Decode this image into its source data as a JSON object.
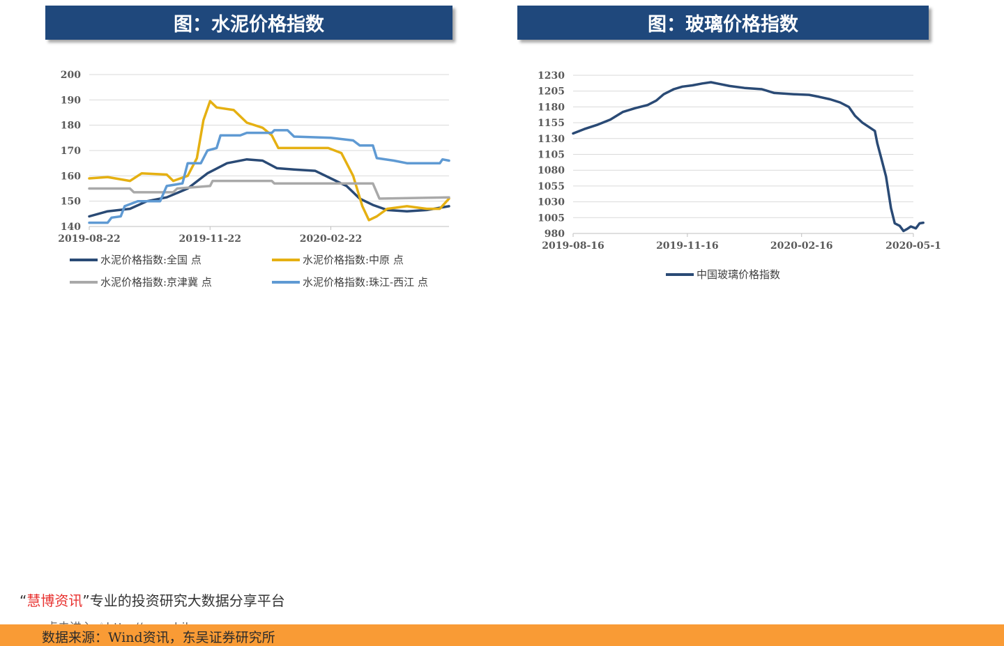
{
  "charts": {
    "left": {
      "banner": "图：水泥价格指数"
    },
    "right": {
      "banner": "图：玻璃价格指数"
    }
  },
  "chart_data": [
    {
      "type": "line",
      "title": "图：水泥价格指数",
      "x_ticks": [
        "2019-08-22",
        "2019-11-22",
        "2020-02-22"
      ],
      "x_range": [
        "2019-08-22",
        "2020-05-22"
      ],
      "y_ticks": [
        140,
        150,
        160,
        170,
        180,
        190,
        200
      ],
      "ylim": [
        140,
        200
      ],
      "grid": true,
      "legend_position": "bottom",
      "series": [
        {
          "name": "水泥价格指数:全国  点",
          "color": "#2a4a75",
          "points": [
            [
              "2019-08-22",
              144
            ],
            [
              "2019-09-05",
              146
            ],
            [
              "2019-09-22",
              147
            ],
            [
              "2019-10-05",
              150
            ],
            [
              "2019-10-20",
              151.5
            ],
            [
              "2019-11-05",
              155
            ],
            [
              "2019-11-20",
              161
            ],
            [
              "2019-12-05",
              165
            ],
            [
              "2019-12-20",
              166.5
            ],
            [
              "2020-01-01",
              166
            ],
            [
              "2020-01-12",
              163
            ],
            [
              "2020-01-25",
              162.5
            ],
            [
              "2020-02-10",
              162
            ],
            [
              "2020-02-22",
              159
            ],
            [
              "2020-03-05",
              156
            ],
            [
              "2020-03-15",
              151
            ],
            [
              "2020-03-25",
              148.5
            ],
            [
              "2020-04-05",
              146.5
            ],
            [
              "2020-04-20",
              146
            ],
            [
              "2020-05-05",
              146.5
            ],
            [
              "2020-05-22",
              148
            ]
          ]
        },
        {
          "name": "水泥价格指数:中原  点",
          "color": "#e5b012",
          "points": [
            [
              "2019-08-22",
              159
            ],
            [
              "2019-09-05",
              159.5
            ],
            [
              "2019-09-22",
              158
            ],
            [
              "2019-10-01",
              161
            ],
            [
              "2019-10-20",
              160.5
            ],
            [
              "2019-10-25",
              158
            ],
            [
              "2019-11-05",
              160
            ],
            [
              "2019-11-12",
              167
            ],
            [
              "2019-11-17",
              182
            ],
            [
              "2019-11-22",
              189.5
            ],
            [
              "2019-11-27",
              187
            ],
            [
              "2019-12-10",
              186
            ],
            [
              "2019-12-20",
              181
            ],
            [
              "2020-01-01",
              179
            ],
            [
              "2020-01-08",
              176
            ],
            [
              "2020-01-13",
              171
            ],
            [
              "2020-02-20",
              171
            ],
            [
              "2020-03-01",
              169
            ],
            [
              "2020-03-10",
              160
            ],
            [
              "2020-03-17",
              148
            ],
            [
              "2020-03-22",
              142.5
            ],
            [
              "2020-03-28",
              144
            ],
            [
              "2020-04-05",
              147
            ],
            [
              "2020-04-20",
              148
            ],
            [
              "2020-05-05",
              147
            ],
            [
              "2020-05-15",
              147
            ],
            [
              "2020-05-22",
              151
            ]
          ]
        },
        {
          "name": "水泥价格指数:京津冀  点",
          "color": "#a9a9a9",
          "points": [
            [
              "2019-08-22",
              155
            ],
            [
              "2019-09-22",
              155
            ],
            [
              "2019-09-25",
              153.5
            ],
            [
              "2019-10-25",
              153.5
            ],
            [
              "2019-10-28",
              155
            ],
            [
              "2019-11-22",
              156
            ],
            [
              "2019-11-24",
              158
            ],
            [
              "2020-01-08",
              158
            ],
            [
              "2020-01-10",
              157
            ],
            [
              "2020-03-25",
              157
            ],
            [
              "2020-03-30",
              151
            ],
            [
              "2020-05-22",
              151.5
            ]
          ]
        },
        {
          "name": "水泥价格指数:珠江-西江  点",
          "color": "#5f9ad3",
          "points": [
            [
              "2019-08-22",
              141.5
            ],
            [
              "2019-09-05",
              141.5
            ],
            [
              "2019-09-08",
              143.5
            ],
            [
              "2019-09-15",
              144
            ],
            [
              "2019-09-18",
              148
            ],
            [
              "2019-09-28",
              150
            ],
            [
              "2019-10-15",
              150
            ],
            [
              "2019-10-20",
              156
            ],
            [
              "2019-11-01",
              157
            ],
            [
              "2019-11-05",
              165
            ],
            [
              "2019-11-15",
              165
            ],
            [
              "2019-11-20",
              170
            ],
            [
              "2019-11-27",
              171
            ],
            [
              "2019-11-30",
              176
            ],
            [
              "2019-12-15",
              176
            ],
            [
              "2019-12-20",
              177
            ],
            [
              "2020-01-08",
              177
            ],
            [
              "2020-01-10",
              178
            ],
            [
              "2020-01-20",
              178
            ],
            [
              "2020-01-25",
              175.5
            ],
            [
              "2020-02-22",
              175
            ],
            [
              "2020-03-10",
              174
            ],
            [
              "2020-03-15",
              172
            ],
            [
              "2020-03-25",
              172
            ],
            [
              "2020-03-28",
              167
            ],
            [
              "2020-04-10",
              166
            ],
            [
              "2020-04-20",
              165
            ],
            [
              "2020-05-15",
              165
            ],
            [
              "2020-05-17",
              166.5
            ],
            [
              "2020-05-22",
              166
            ]
          ]
        }
      ]
    },
    {
      "type": "line",
      "title": "图：玻璃价格指数",
      "x_ticks": [
        "2019-08-16",
        "2019-11-16",
        "2020-02-16",
        "2020-05-1"
      ],
      "x_range": [
        "2019-08-16",
        "2020-05-16"
      ],
      "y_ticks": [
        980,
        1005,
        1030,
        1055,
        1080,
        1105,
        1130,
        1155,
        1180,
        1205,
        1230
      ],
      "ylim": [
        980,
        1230
      ],
      "grid": true,
      "legend_position": "bottom",
      "series": [
        {
          "name": "中国玻璃价格指数",
          "color": "#2a4a75",
          "points": [
            [
              "2019-08-16",
              1138
            ],
            [
              "2019-08-25",
              1145
            ],
            [
              "2019-09-05",
              1152
            ],
            [
              "2019-09-15",
              1160
            ],
            [
              "2019-09-25",
              1172
            ],
            [
              "2019-10-05",
              1178
            ],
            [
              "2019-10-15",
              1183
            ],
            [
              "2019-10-22",
              1190
            ],
            [
              "2019-10-28",
              1200
            ],
            [
              "2019-11-05",
              1208
            ],
            [
              "2019-11-12",
              1212
            ],
            [
              "2019-11-20",
              1214
            ],
            [
              "2019-11-28",
              1217
            ],
            [
              "2019-12-05",
              1219
            ],
            [
              "2019-12-10",
              1217
            ],
            [
              "2019-12-20",
              1213
            ],
            [
              "2020-01-01",
              1210
            ],
            [
              "2020-01-15",
              1208
            ],
            [
              "2020-01-25",
              1202
            ],
            [
              "2020-02-10",
              1200
            ],
            [
              "2020-02-22",
              1199
            ],
            [
              "2020-03-01",
              1196
            ],
            [
              "2020-03-10",
              1192
            ],
            [
              "2020-03-18",
              1187
            ],
            [
              "2020-03-25",
              1180
            ],
            [
              "2020-03-30",
              1166
            ],
            [
              "2020-04-05",
              1155
            ],
            [
              "2020-04-12",
              1146
            ],
            [
              "2020-04-15",
              1142
            ],
            [
              "2020-04-17",
              1122
            ],
            [
              "2020-04-20",
              1100
            ],
            [
              "2020-04-24",
              1070
            ],
            [
              "2020-04-28",
              1020
            ],
            [
              "2020-05-01",
              996
            ],
            [
              "2020-05-05",
              992
            ],
            [
              "2020-05-08",
              984
            ],
            [
              "2020-05-11",
              987
            ],
            [
              "2020-05-14",
              991
            ],
            [
              "2020-05-18",
              988
            ],
            [
              "2020-05-21",
              996
            ],
            [
              "2020-05-24",
              997
            ]
          ]
        }
      ]
    }
  ],
  "footer": {
    "brand_open_quote": "“",
    "brand_name": "慧博资讯",
    "brand_close_quote": "”",
    "brand_tagline": "专业的投资研究大数据分享平台",
    "link_prefix": "点击进入",
    "hand_icon": "pointer-hand-icon",
    "link_url": "http://www.hibor.com.cn",
    "source": "数据来源：Wind资讯，东吴证券研究所",
    "bar_color": "#f99b35"
  }
}
